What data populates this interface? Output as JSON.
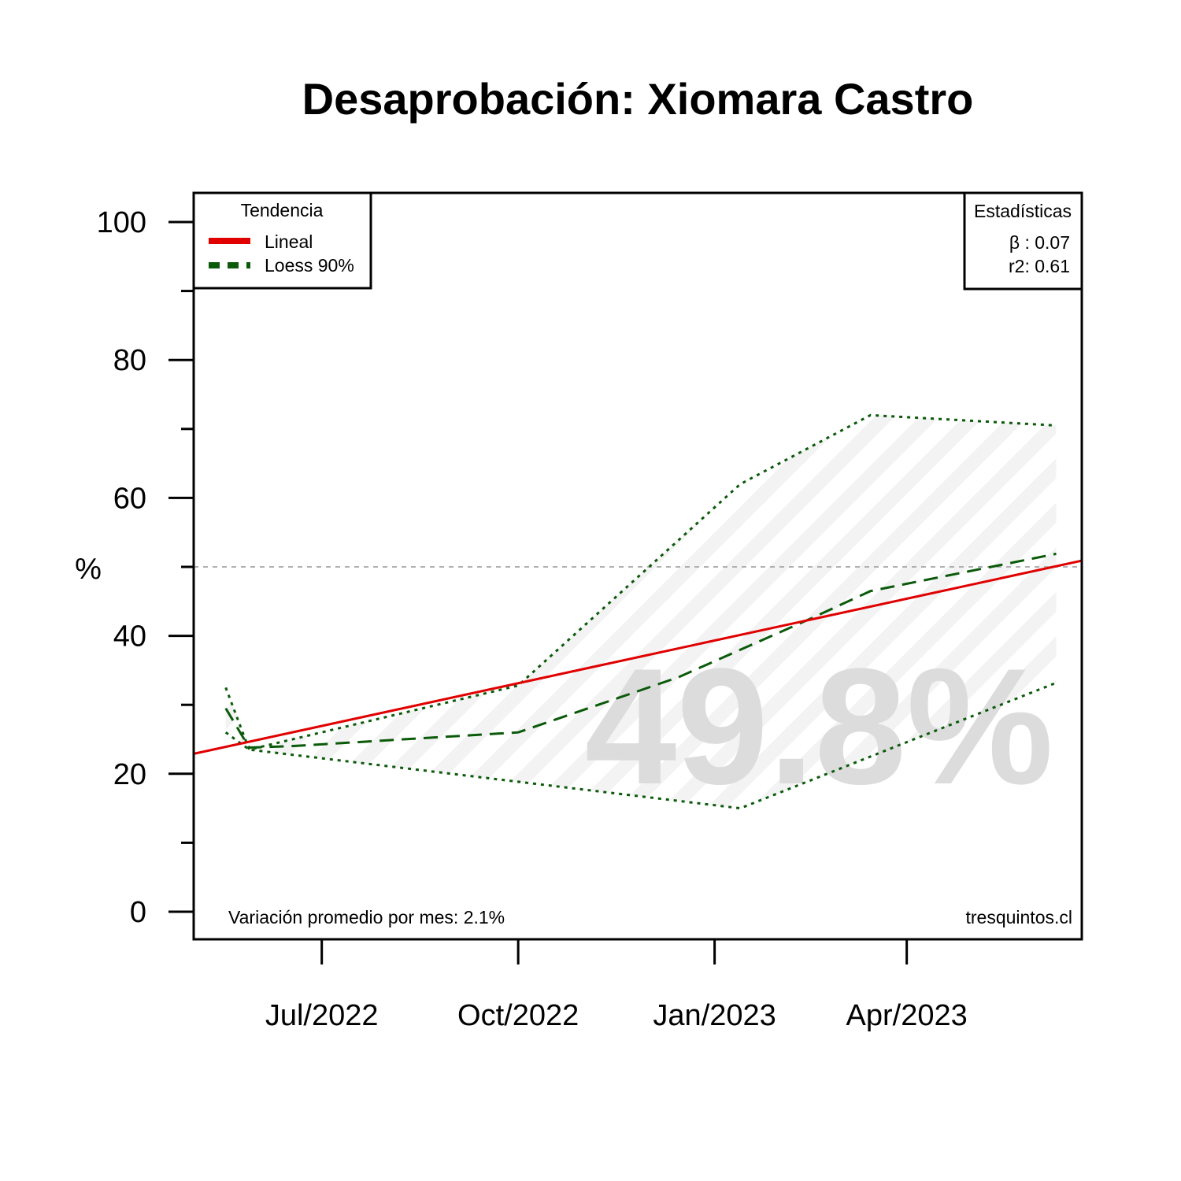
{
  "chart_data": {
    "type": "line",
    "title": "Desaprobación: Xiomara Castro",
    "ylabel": "%",
    "xlabel": "",
    "ylim": [
      0,
      100
    ],
    "xlim": [
      "2022-05-02",
      "2023-06-22"
    ],
    "y_ticks": [
      {
        "value": 0,
        "label": "0"
      },
      {
        "value": 20,
        "label": "20"
      },
      {
        "value": 40,
        "label": "40"
      },
      {
        "value": 60,
        "label": "60"
      },
      {
        "value": 80,
        "label": "80"
      },
      {
        "value": 100,
        "label": "100"
      }
    ],
    "y_minor_ticks": [
      10,
      30,
      50,
      70,
      90
    ],
    "x_ticks": [
      {
        "date": "2022-07-01",
        "label": "Jul/2022"
      },
      {
        "date": "2022-10-01",
        "label": "Oct/2022"
      },
      {
        "date": "2023-01-01",
        "label": "Jan/2023"
      },
      {
        "date": "2023-04-01",
        "label": "Apr/2023"
      }
    ],
    "reference_line": {
      "y": 50,
      "color": "#b0b0b0",
      "style": "dotted"
    },
    "series": [
      {
        "name": "Lineal",
        "style": "solid",
        "color": "#e00000",
        "x": [
          "2022-05-02",
          "2023-06-22"
        ],
        "y": [
          22.9,
          50.9
        ]
      },
      {
        "name": "Loess 90%",
        "style": "dashed",
        "color": "#0a5a0a",
        "x": [
          "2022-05-17",
          "2022-05-28",
          "2022-06-16",
          "2022-10-01",
          "2022-12-15",
          "2023-02-15",
          "2023-03-15",
          "2023-06-10"
        ],
        "y": [
          29.5,
          23.8,
          24.0,
          26.0,
          34.0,
          42.5,
          46.5,
          51.9
        ]
      }
    ],
    "bands": [
      {
        "upper": {
          "x": [
            "2022-05-17",
            "2022-05-28",
            "2022-10-01",
            "2023-01-13",
            "2023-03-15",
            "2023-06-10"
          ],
          "y": [
            32.5,
            23.5,
            32.8,
            62.0,
            72.0,
            70.5
          ]
        },
        "lower": {
          "x": [
            "2022-05-17",
            "2022-05-28",
            "2023-01-13",
            "2023-06-10"
          ],
          "y": [
            26.0,
            23.5,
            15.0,
            33.2
          ]
        },
        "color": "#0a5a0a",
        "style": "dotted"
      }
    ],
    "legend": {
      "title": "Tendencia",
      "placement": "top-left",
      "entries": [
        "Lineal",
        "Loess 90%"
      ]
    },
    "stats_box": {
      "title": "Estadísticas",
      "placement": "top-right",
      "lines": [
        "β : 0.07",
        "r2: 0.61"
      ]
    },
    "current_value": "49.8%",
    "footer_left": "Variación promedio por mes: 2.1%",
    "footer_right": "tresquintos.cl"
  }
}
